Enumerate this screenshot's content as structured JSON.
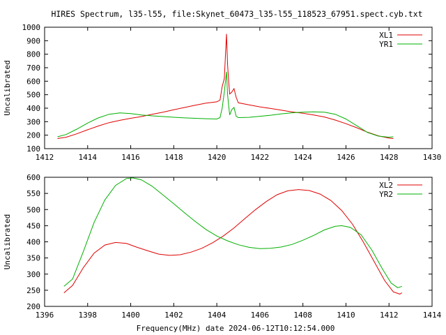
{
  "title": "HIRES Spectrum, l35-l55, file:Skynet_60473_l35-l55_118523_67951.spect.cyb.txt",
  "xlabel": "Frequency(MHz) date 2024-06-12T10:12:54.000",
  "colors": {
    "red": "#e00000",
    "green": "#00b000"
  },
  "chart_data": [
    {
      "type": "line",
      "ylabel": "Uncalibrated",
      "xlim": [
        1412,
        1430
      ],
      "ylim": [
        100,
        1000
      ],
      "xticks": [
        "1412",
        "1414",
        "1416",
        "1418",
        "1420",
        "1422",
        "1424",
        "1426",
        "1428",
        "1430"
      ],
      "yticks": [
        "100",
        "200",
        "300",
        "400",
        "500",
        "600",
        "700",
        "800",
        "900",
        "1000"
      ],
      "legend_position": "top-right",
      "grid": false,
      "series": [
        {
          "name": "XL1",
          "color": "#e00000",
          "points": [
            [
              1412.6,
              175
            ],
            [
              1413.0,
              185
            ],
            [
              1413.5,
              210
            ],
            [
              1414,
              240
            ],
            [
              1414.5,
              268
            ],
            [
              1415,
              293
            ],
            [
              1415.5,
              310
            ],
            [
              1416,
              325
            ],
            [
              1416.5,
              338
            ],
            [
              1417,
              355
            ],
            [
              1417.5,
              370
            ],
            [
              1418,
              388
            ],
            [
              1418.5,
              405
            ],
            [
              1419,
              422
            ],
            [
              1419.5,
              437
            ],
            [
              1420,
              447
            ],
            [
              1420.15,
              460
            ],
            [
              1420.25,
              560
            ],
            [
              1420.35,
              620
            ],
            [
              1420.45,
              950
            ],
            [
              1420.5,
              720
            ],
            [
              1420.55,
              600
            ],
            [
              1420.6,
              505
            ],
            [
              1420.7,
              520
            ],
            [
              1420.8,
              545
            ],
            [
              1420.9,
              480
            ],
            [
              1421.0,
              440
            ],
            [
              1421.5,
              425
            ],
            [
              1422,
              410
            ],
            [
              1422.5,
              398
            ],
            [
              1423,
              385
            ],
            [
              1423.5,
              372
            ],
            [
              1424,
              362
            ],
            [
              1424.5,
              350
            ],
            [
              1425,
              335
            ],
            [
              1425.5,
              312
            ],
            [
              1426,
              285
            ],
            [
              1426.5,
              255
            ],
            [
              1427,
              222
            ],
            [
              1427.5,
              195
            ],
            [
              1428.0,
              178
            ],
            [
              1428.2,
              175
            ]
          ]
        },
        {
          "name": "YR1",
          "color": "#00b000",
          "points": [
            [
              1412.6,
              188
            ],
            [
              1413.0,
              205
            ],
            [
              1413.5,
              245
            ],
            [
              1414,
              290
            ],
            [
              1414.5,
              328
            ],
            [
              1415,
              355
            ],
            [
              1415.5,
              365
            ],
            [
              1416,
              360
            ],
            [
              1416.5,
              350
            ],
            [
              1417,
              343
            ],
            [
              1417.5,
              338
            ],
            [
              1418,
              333
            ],
            [
              1418.5,
              328
            ],
            [
              1419,
              325
            ],
            [
              1419.5,
              322
            ],
            [
              1420,
              320
            ],
            [
              1420.15,
              330
            ],
            [
              1420.25,
              400
            ],
            [
              1420.35,
              520
            ],
            [
              1420.45,
              670
            ],
            [
              1420.5,
              500
            ],
            [
              1420.55,
              420
            ],
            [
              1420.6,
              350
            ],
            [
              1420.7,
              390
            ],
            [
              1420.8,
              405
            ],
            [
              1420.9,
              340
            ],
            [
              1421.0,
              330
            ],
            [
              1421.5,
              332
            ],
            [
              1422,
              340
            ],
            [
              1422.5,
              348
            ],
            [
              1423,
              358
            ],
            [
              1423.5,
              366
            ],
            [
              1424,
              370
            ],
            [
              1424.5,
              373
            ],
            [
              1425,
              370
            ],
            [
              1425.5,
              355
            ],
            [
              1426,
              320
            ],
            [
              1426.5,
              270
            ],
            [
              1427,
              220
            ],
            [
              1427.5,
              193
            ],
            [
              1428.0,
              185
            ],
            [
              1428.2,
              188
            ]
          ]
        }
      ]
    },
    {
      "type": "line",
      "ylabel": "Uncalibrated",
      "xlim": [
        1396,
        1414
      ],
      "ylim": [
        200,
        600
      ],
      "xticks": [
        "1396",
        "1398",
        "1400",
        "1402",
        "1404",
        "1406",
        "1408",
        "1410",
        "1412",
        "1414"
      ],
      "yticks": [
        "200",
        "250",
        "300",
        "350",
        "400",
        "450",
        "500",
        "550",
        "600"
      ],
      "legend_position": "top-right",
      "grid": false,
      "series": [
        {
          "name": "XL2",
          "color": "#e00000",
          "points": [
            [
              1396.9,
              242
            ],
            [
              1397.3,
              265
            ],
            [
              1397.8,
              320
            ],
            [
              1398.3,
              365
            ],
            [
              1398.8,
              390
            ],
            [
              1399.3,
              398
            ],
            [
              1399.8,
              395
            ],
            [
              1400.3,
              383
            ],
            [
              1400.8,
              372
            ],
            [
              1401.3,
              362
            ],
            [
              1401.8,
              358
            ],
            [
              1402.3,
              360
            ],
            [
              1402.8,
              368
            ],
            [
              1403.3,
              380
            ],
            [
              1403.8,
              397
            ],
            [
              1404.3,
              418
            ],
            [
              1404.8,
              443
            ],
            [
              1405.3,
              472
            ],
            [
              1405.8,
              500
            ],
            [
              1406.3,
              525
            ],
            [
              1406.8,
              546
            ],
            [
              1407.3,
              558
            ],
            [
              1407.8,
              562
            ],
            [
              1408.3,
              559
            ],
            [
              1408.8,
              548
            ],
            [
              1409.3,
              528
            ],
            [
              1409.8,
              497
            ],
            [
              1410.3,
              455
            ],
            [
              1410.8,
              400
            ],
            [
              1411.3,
              340
            ],
            [
              1411.8,
              280
            ],
            [
              1412.2,
              245
            ],
            [
              1412.5,
              238
            ],
            [
              1412.6,
              242
            ]
          ]
        },
        {
          "name": "YR2",
          "color": "#00b000",
          "points": [
            [
              1396.9,
              262
            ],
            [
              1397.3,
              285
            ],
            [
              1397.8,
              370
            ],
            [
              1398.3,
              460
            ],
            [
              1398.8,
              530
            ],
            [
              1399.3,
              575
            ],
            [
              1399.8,
              596
            ],
            [
              1400.1,
              598
            ],
            [
              1400.5,
              592
            ],
            [
              1401.0,
              572
            ],
            [
              1401.5,
              545
            ],
            [
              1402.0,
              518
            ],
            [
              1402.5,
              490
            ],
            [
              1403.0,
              463
            ],
            [
              1403.5,
              438
            ],
            [
              1404.0,
              418
            ],
            [
              1404.5,
              403
            ],
            [
              1405.0,
              391
            ],
            [
              1405.5,
              383
            ],
            [
              1406.0,
              379
            ],
            [
              1406.5,
              380
            ],
            [
              1407.0,
              384
            ],
            [
              1407.5,
              392
            ],
            [
              1408.0,
              405
            ],
            [
              1408.5,
              420
            ],
            [
              1409.0,
              437
            ],
            [
              1409.5,
              448
            ],
            [
              1409.8,
              450
            ],
            [
              1410.2,
              445
            ],
            [
              1410.7,
              422
            ],
            [
              1411.2,
              375
            ],
            [
              1411.7,
              315
            ],
            [
              1412.1,
              272
            ],
            [
              1412.4,
              258
            ],
            [
              1412.6,
              262
            ]
          ]
        }
      ]
    }
  ]
}
